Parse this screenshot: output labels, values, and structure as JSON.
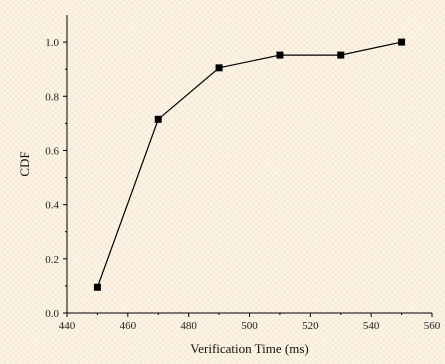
{
  "chart_data": {
    "type": "line",
    "title": "",
    "xlabel": "Verification Time (ms)",
    "ylabel": "CDF",
    "xlim": [
      440,
      560
    ],
    "ylim": [
      0.0,
      1.1
    ],
    "x_ticks": [
      440,
      460,
      480,
      500,
      520,
      540,
      560
    ],
    "y_ticks": [
      0.0,
      0.2,
      0.4,
      0.6,
      0.8,
      1.0
    ],
    "x_tick_labels": [
      "440",
      "460",
      "480",
      "500",
      "520",
      "540",
      "560"
    ],
    "y_tick_labels": [
      "0.0",
      "0.2",
      "0.4",
      "0.6",
      "0.8",
      "1.0"
    ],
    "grid": false,
    "marker": "square",
    "colors": {
      "series": "#000000",
      "axes": "#000000",
      "background": "#fdf4e6"
    },
    "x": [
      450,
      470,
      490,
      510,
      530,
      550
    ],
    "y": [
      0.095,
      0.715,
      0.905,
      0.952,
      0.952,
      1.0
    ]
  }
}
